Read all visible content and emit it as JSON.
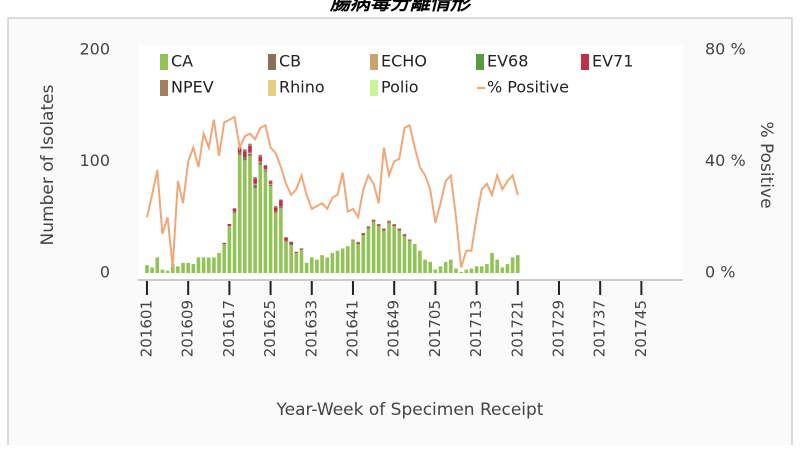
{
  "chart_data": {
    "type": "bar",
    "stacked": true,
    "title": "腸病毒分離情形",
    "x_label": "Year-Week of Specimen Receipt",
    "y_label": "Number of Isolates",
    "y2_label": "% Positive",
    "categories": [
      "201601",
      null,
      null,
      null,
      null,
      null,
      null,
      null,
      "201609",
      null,
      null,
      null,
      null,
      null,
      null,
      null,
      "201617",
      null,
      null,
      null,
      null,
      null,
      null,
      null,
      "201625",
      null,
      null,
      null,
      null,
      null,
      null,
      null,
      "201633",
      null,
      null,
      null,
      null,
      null,
      null,
      null,
      "201641",
      null,
      null,
      null,
      null,
      null,
      null,
      null,
      "201649",
      null,
      null,
      null,
      null,
      null,
      null,
      null,
      "201705",
      null,
      null,
      null,
      null,
      null,
      null,
      null,
      "201713",
      null,
      null,
      null,
      null,
      null,
      null,
      null,
      "201721",
      null,
      null,
      null,
      null,
      null,
      null,
      null,
      "201729",
      null,
      null,
      null,
      null,
      null,
      null,
      null,
      "201737",
      null,
      null,
      null,
      null,
      null,
      null,
      null,
      "201745",
      null,
      null,
      null,
      null,
      null,
      null,
      null
    ],
    "ylim": [
      0,
      200
    ],
    "yticks": [
      0,
      100,
      200
    ],
    "y2lim": [
      0,
      80
    ],
    "y2ticks": [
      {
        "value": 0,
        "label": "0 %"
      },
      {
        "value": 40,
        "label": "40 %"
      },
      {
        "value": 80,
        "label": "80 %"
      }
    ],
    "grid": false,
    "series": [
      {
        "name": "CA",
        "color": "#92c356",
        "values": [
          7,
          5,
          14,
          3,
          2,
          8,
          6,
          9,
          9,
          8,
          14,
          14,
          14,
          14,
          18,
          26,
          42,
          54,
          106,
          101,
          105,
          76,
          97,
          91,
          78,
          54,
          58,
          28,
          25,
          18,
          21,
          9,
          14,
          12,
          16,
          14,
          18,
          20,
          22,
          24,
          29,
          26,
          34,
          40,
          46,
          42,
          38,
          45,
          42,
          38,
          33,
          29,
          26,
          20,
          12,
          10,
          3,
          6,
          10,
          12,
          4,
          1,
          3,
          4,
          6,
          6,
          8,
          18,
          12,
          5,
          8,
          14,
          16,
          null,
          null,
          null,
          null,
          null,
          null,
          null,
          null,
          null,
          null,
          null,
          null,
          null,
          null,
          null,
          null,
          null,
          null,
          null,
          null,
          null,
          null,
          null,
          null,
          null,
          null,
          null,
          null,
          null,
          null,
          null
        ]
      },
      {
        "name": "CB",
        "color": "#8b6f5e",
        "values": [
          0,
          0,
          0,
          0,
          0,
          0,
          0,
          0,
          0,
          0,
          0,
          0,
          0,
          0,
          0,
          0,
          0,
          1,
          2,
          3,
          2,
          3,
          2,
          1,
          1,
          1,
          2,
          1,
          1,
          0,
          0,
          0,
          0,
          0,
          0,
          0,
          0,
          0,
          0,
          0,
          0,
          0,
          0,
          0,
          0,
          0,
          0,
          0,
          0,
          0,
          0,
          0,
          0,
          0,
          0,
          0,
          0,
          0,
          0,
          0,
          0,
          0,
          0,
          0,
          0,
          0,
          0,
          0,
          0,
          0,
          0,
          0,
          0,
          null,
          null,
          null,
          null,
          null,
          null,
          null,
          null,
          null,
          null,
          null,
          null,
          null,
          null,
          null,
          null,
          null,
          null,
          null,
          null,
          null,
          null,
          null,
          null,
          null,
          null,
          null,
          null,
          null,
          null,
          null
        ]
      },
      {
        "name": "ECHO",
        "color": "#c4a56e",
        "values": [
          0,
          0,
          0,
          0,
          0,
          0,
          0,
          0,
          0,
          0,
          0,
          0,
          0,
          0,
          0,
          0,
          0,
          0,
          0,
          0,
          1,
          1,
          1,
          1,
          1,
          0,
          0,
          0,
          0,
          0,
          0,
          0,
          0,
          0,
          0,
          0,
          0,
          0,
          0,
          0,
          0,
          0,
          0,
          0,
          0,
          0,
          0,
          0,
          0,
          0,
          0,
          0,
          0,
          0,
          0,
          0,
          0,
          0,
          0,
          0,
          0,
          0,
          0,
          0,
          0,
          0,
          0,
          0,
          0,
          0,
          0,
          0,
          0,
          null,
          null,
          null,
          null,
          null,
          null,
          null,
          null,
          null,
          null,
          null,
          null,
          null,
          null,
          null,
          null,
          null,
          null,
          null,
          null,
          null,
          null,
          null,
          null,
          null,
          null,
          null,
          null,
          null,
          null,
          null
        ]
      },
      {
        "name": "EV68",
        "color": "#5a9a3a",
        "values": [
          0,
          0,
          0,
          0,
          0,
          0,
          0,
          0,
          0,
          0,
          0,
          0,
          0,
          0,
          0,
          0,
          0,
          0,
          0,
          0,
          0,
          0,
          0,
          0,
          0,
          0,
          0,
          0,
          0,
          0,
          0,
          0,
          0,
          0,
          0,
          0,
          0,
          0,
          0,
          0,
          0,
          0,
          0,
          0,
          0,
          0,
          0,
          0,
          0,
          0,
          0,
          0,
          0,
          0,
          0,
          0,
          0,
          0,
          0,
          0,
          0,
          0,
          0,
          0,
          0,
          0,
          0,
          0,
          0,
          0,
          0,
          0,
          0,
          null,
          null,
          null,
          null,
          null,
          null,
          null,
          null,
          null,
          null,
          null,
          null,
          null,
          null,
          null,
          null,
          null,
          null,
          null,
          null,
          null,
          null,
          null,
          null,
          null,
          null,
          null,
          null,
          null,
          null,
          null
        ]
      },
      {
        "name": "EV71",
        "color": "#c0304a",
        "values": [
          0,
          0,
          0,
          0,
          0,
          0,
          0,
          0,
          0,
          0,
          0,
          0,
          0,
          0,
          0,
          1,
          2,
          3,
          4,
          5,
          6,
          5,
          4,
          3,
          2,
          4,
          5,
          3,
          2,
          1,
          1,
          0,
          0,
          0,
          0,
          0,
          0,
          0,
          0,
          0,
          0,
          1,
          1,
          1,
          1,
          1,
          1,
          1,
          1,
          1,
          1,
          1,
          0,
          0,
          0,
          0,
          0,
          0,
          0,
          0,
          0,
          0,
          0,
          0,
          0,
          0,
          0,
          0,
          0,
          0,
          0,
          0,
          0,
          null,
          null,
          null,
          null,
          null,
          null,
          null,
          null,
          null,
          null,
          null,
          null,
          null,
          null,
          null,
          null,
          null,
          null,
          null,
          null,
          null,
          null,
          null,
          null,
          null,
          null,
          null,
          null,
          null,
          null,
          null
        ]
      },
      {
        "name": "NPEV",
        "color": "#a08060",
        "values": [
          0,
          0,
          0,
          0,
          0,
          0,
          0,
          0,
          0,
          0,
          0,
          0,
          0,
          0,
          0,
          0,
          0,
          0,
          1,
          2,
          2,
          1,
          2,
          1,
          1,
          1,
          1,
          0,
          0,
          0,
          0,
          0,
          0,
          0,
          0,
          0,
          0,
          0,
          0,
          0,
          1,
          1,
          1,
          1,
          1,
          1,
          1,
          1,
          1,
          1,
          1,
          0,
          0,
          0,
          0,
          0,
          0,
          0,
          0,
          0,
          0,
          0,
          0,
          0,
          0,
          0,
          0,
          0,
          0,
          0,
          0,
          0,
          0,
          null,
          null,
          null,
          null,
          null,
          null,
          null,
          null,
          null,
          null,
          null,
          null,
          null,
          null,
          null,
          null,
          null,
          null,
          null,
          null,
          null,
          null,
          null,
          null,
          null,
          null,
          null,
          null,
          null,
          null,
          null
        ]
      },
      {
        "name": "Rhino",
        "color": "#e8d080",
        "values": [
          0,
          0,
          0,
          0,
          0,
          0,
          0,
          0,
          0,
          0,
          0,
          0,
          0,
          0,
          0,
          0,
          0,
          0,
          0,
          0,
          0,
          0,
          0,
          0,
          0,
          0,
          0,
          0,
          0,
          0,
          0,
          0,
          0,
          0,
          0,
          0,
          0,
          0,
          0,
          0,
          0,
          0,
          0,
          0,
          0,
          0,
          0,
          0,
          0,
          0,
          0,
          0,
          0,
          0,
          0,
          0,
          0,
          0,
          0,
          0,
          0,
          0,
          0,
          0,
          0,
          0,
          0,
          0,
          0,
          0,
          0,
          0,
          0,
          null,
          null,
          null,
          null,
          null,
          null,
          null,
          null,
          null,
          null,
          null,
          null,
          null,
          null,
          null,
          null,
          null,
          null,
          null,
          null,
          null,
          null,
          null,
          null,
          null,
          null,
          null,
          null,
          null,
          null,
          null
        ]
      },
      {
        "name": "Polio",
        "color": "#ccf29a",
        "values": [
          0,
          0,
          0,
          0,
          0,
          0,
          0,
          0,
          0,
          0,
          0,
          0,
          0,
          0,
          0,
          0,
          0,
          0,
          0,
          0,
          0,
          0,
          0,
          0,
          0,
          0,
          0,
          0,
          0,
          0,
          0,
          0,
          0,
          0,
          0,
          0,
          0,
          0,
          0,
          0,
          0,
          0,
          0,
          0,
          0,
          0,
          0,
          0,
          0,
          0,
          0,
          0,
          0,
          0,
          0,
          0,
          0,
          0,
          0,
          0,
          0,
          0,
          0,
          0,
          0,
          0,
          0,
          0,
          0,
          0,
          0,
          0,
          0,
          null,
          null,
          null,
          null,
          null,
          null,
          null,
          null,
          null,
          null,
          null,
          null,
          null,
          null,
          null,
          null,
          null,
          null,
          null,
          null,
          null,
          null,
          null,
          null,
          null,
          null,
          null,
          null,
          null,
          null,
          null
        ]
      },
      {
        "name": "% Positive",
        "color": "#f0a878",
        "type": "line",
        "axis": "y2",
        "values": [
          20,
          28,
          37,
          14,
          20,
          2,
          33,
          25,
          40,
          45,
          38,
          50,
          45,
          55,
          42,
          54,
          55,
          56,
          45,
          49,
          50,
          48,
          52,
          53,
          45,
          43,
          38,
          32,
          28,
          30,
          35,
          28,
          23,
          24,
          25,
          23,
          27,
          28,
          36,
          22,
          23,
          20,
          30,
          35,
          32,
          25,
          45,
          35,
          40,
          41,
          52,
          53,
          45,
          38,
          35,
          30,
          18,
          25,
          33,
          35,
          20,
          2,
          8,
          8,
          20,
          30,
          32,
          28,
          35,
          30,
          33,
          35,
          28,
          null,
          null,
          null,
          null,
          null,
          null,
          null,
          null,
          null,
          null,
          null,
          null,
          null,
          null,
          null,
          null,
          null,
          null,
          null,
          null,
          null,
          null,
          null,
          null,
          null,
          null,
          null,
          null,
          null,
          null,
          null
        ]
      }
    ]
  }
}
